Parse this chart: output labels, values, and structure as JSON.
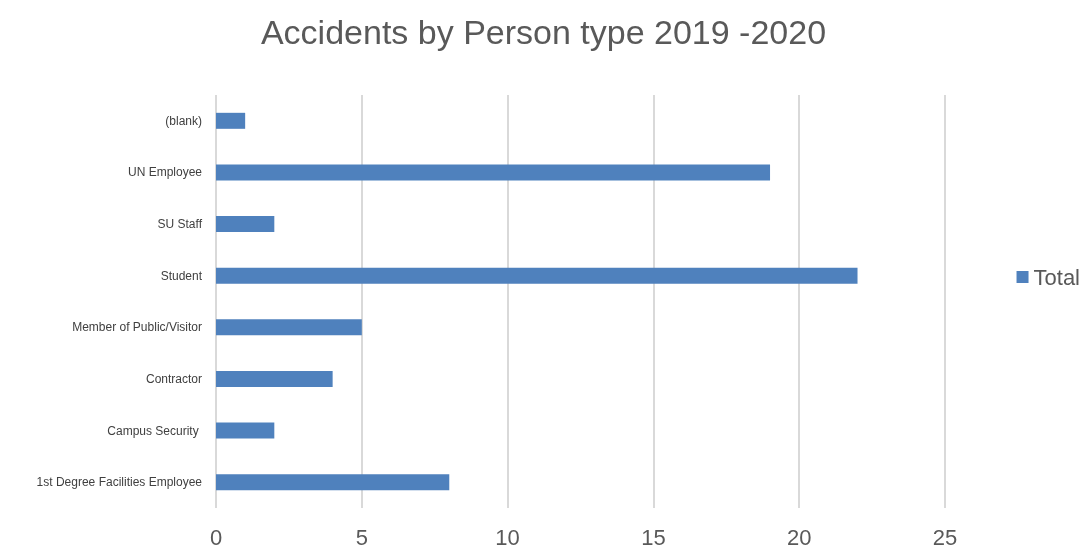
{
  "chart_data": {
    "type": "bar",
    "orientation": "horizontal",
    "title": "Accidents by Person type 2019 -2020",
    "categories": [
      "(blank)",
      "UN Employee",
      "SU Staff",
      "Student",
      "Member of Public/Visitor",
      "Contractor",
      "Campus Security ",
      "1st Degree Facilities Employee"
    ],
    "series": [
      {
        "name": "Total",
        "color": "#4f81bd",
        "values": [
          1,
          19,
          2,
          22,
          5,
          4,
          2,
          8
        ]
      }
    ],
    "xlim": [
      0,
      25
    ],
    "xticks": [
      0,
      5,
      10,
      15,
      20,
      25
    ],
    "grid": "x",
    "legend": "right"
  }
}
